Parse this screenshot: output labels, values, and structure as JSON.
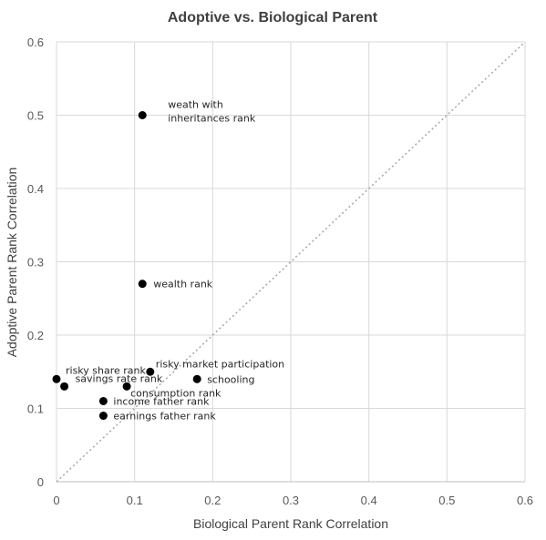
{
  "chart_data": {
    "type": "scatter",
    "title": "Adoptive vs. Biological Parent",
    "xlabel": "Biological Parent Rank Correlation",
    "ylabel": "Adoptive Parent Rank Correlation",
    "xlim": [
      0,
      0.6
    ],
    "ylim": [
      0,
      0.6
    ],
    "xticks": [
      "0",
      "0.1",
      "0.2",
      "0.3",
      "0.4",
      "0.5",
      "0.6"
    ],
    "yticks": [
      "0",
      "0.1",
      "0.2",
      "0.3",
      "0.4",
      "0.5",
      "0.6"
    ],
    "grid": true,
    "diagonal_reference_line": true,
    "marker_color": "#000000",
    "points": [
      {
        "label": [
          "weath with",
          "inheritances rank"
        ],
        "x": 0.11,
        "y": 0.5,
        "anchor": "start"
      },
      {
        "label": [
          "wealth rank"
        ],
        "x": 0.11,
        "y": 0.27,
        "anchor": "start"
      },
      {
        "label": [
          "risky share rank"
        ],
        "x": 0.0,
        "y": 0.14,
        "anchor": "start"
      },
      {
        "label": [
          "savings rate rank"
        ],
        "x": 0.01,
        "y": 0.13,
        "anchor": "start"
      },
      {
        "label": [
          "risky market participation"
        ],
        "x": 0.12,
        "y": 0.15,
        "anchor": "start"
      },
      {
        "label": [
          "schooling"
        ],
        "x": 0.18,
        "y": 0.14,
        "anchor": "start"
      },
      {
        "label": [
          "consumption rank"
        ],
        "x": 0.09,
        "y": 0.13,
        "anchor": "start"
      },
      {
        "label": [
          "income father rank"
        ],
        "x": 0.06,
        "y": 0.11,
        "anchor": "start"
      },
      {
        "label": [
          "earnings father rank"
        ],
        "x": 0.06,
        "y": 0.09,
        "anchor": "start"
      }
    ]
  }
}
